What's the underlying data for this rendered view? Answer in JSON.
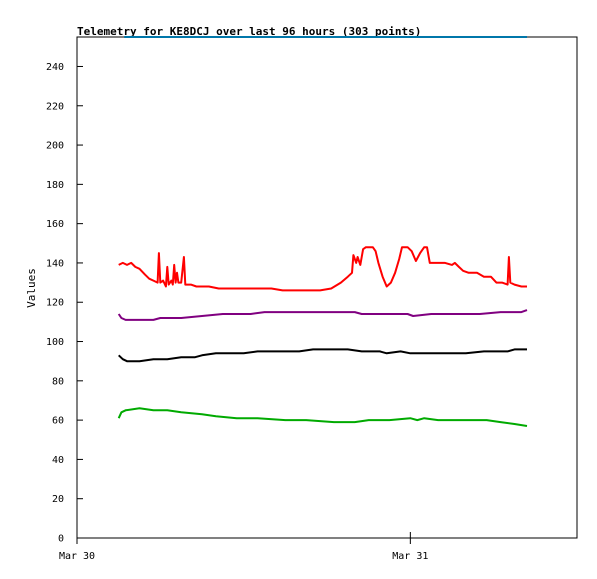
{
  "chart_data": {
    "type": "line",
    "title": "Telemetry for KE8DCJ over last 96 hours (303 points)",
    "xlabel": "",
    "ylabel": "Values",
    "ylim": [
      0,
      255
    ],
    "yticks": [
      0,
      20,
      40,
      60,
      80,
      100,
      120,
      140,
      160,
      180,
      200,
      220,
      240
    ],
    "xlim_hours": [
      0,
      36
    ],
    "xticks": [
      {
        "label": "Mar 30",
        "hour": 0
      },
      {
        "label": "Mar 31",
        "hour": 24
      }
    ],
    "grid": false,
    "legend": "none",
    "series": [
      {
        "color": "#0077aa",
        "points": [
          [
            3.4,
            255
          ],
          [
            32.4,
            255
          ]
        ]
      },
      {
        "color": "#ff0000",
        "points": [
          [
            3.0,
            139
          ],
          [
            3.3,
            140
          ],
          [
            3.6,
            139
          ],
          [
            3.9,
            140
          ],
          [
            4.2,
            138
          ],
          [
            4.5,
            137
          ],
          [
            4.9,
            134
          ],
          [
            5.2,
            132
          ],
          [
            5.5,
            131
          ],
          [
            5.8,
            130
          ],
          [
            5.9,
            145
          ],
          [
            6.0,
            130
          ],
          [
            6.2,
            131
          ],
          [
            6.4,
            128
          ],
          [
            6.5,
            138
          ],
          [
            6.6,
            129
          ],
          [
            6.8,
            131
          ],
          [
            6.9,
            129
          ],
          [
            7.0,
            139
          ],
          [
            7.1,
            130
          ],
          [
            7.2,
            135
          ],
          [
            7.3,
            130
          ],
          [
            7.5,
            130
          ],
          [
            7.7,
            143
          ],
          [
            7.8,
            129
          ],
          [
            8.2,
            129
          ],
          [
            8.6,
            128
          ],
          [
            9.5,
            128
          ],
          [
            10.2,
            127
          ],
          [
            11.0,
            127
          ],
          [
            12.5,
            127
          ],
          [
            14.0,
            127
          ],
          [
            14.8,
            126
          ],
          [
            16.0,
            126
          ],
          [
            17.5,
            126
          ],
          [
            18.3,
            127
          ],
          [
            19.0,
            130
          ],
          [
            19.5,
            133
          ],
          [
            19.8,
            135
          ],
          [
            19.9,
            144
          ],
          [
            20.1,
            140
          ],
          [
            20.2,
            143
          ],
          [
            20.4,
            139
          ],
          [
            20.6,
            147
          ],
          [
            20.8,
            148
          ],
          [
            21.0,
            148
          ],
          [
            21.3,
            148
          ],
          [
            21.5,
            146
          ],
          [
            21.7,
            140
          ],
          [
            22.0,
            133
          ],
          [
            22.3,
            128
          ],
          [
            22.6,
            130
          ],
          [
            22.9,
            135
          ],
          [
            23.2,
            142
          ],
          [
            23.4,
            148
          ],
          [
            23.8,
            148
          ],
          [
            24.1,
            146
          ],
          [
            24.4,
            141
          ],
          [
            24.7,
            145
          ],
          [
            25.0,
            148
          ],
          [
            25.2,
            148
          ],
          [
            25.4,
            140
          ],
          [
            26.0,
            140
          ],
          [
            26.5,
            140
          ],
          [
            27.0,
            139
          ],
          [
            27.2,
            140
          ],
          [
            27.5,
            138
          ],
          [
            27.8,
            136
          ],
          [
            28.2,
            135
          ],
          [
            28.8,
            135
          ],
          [
            29.3,
            133
          ],
          [
            29.8,
            133
          ],
          [
            30.2,
            130
          ],
          [
            30.6,
            130
          ],
          [
            31.0,
            129
          ],
          [
            31.1,
            143
          ],
          [
            31.2,
            130
          ],
          [
            31.5,
            129
          ],
          [
            32.0,
            128
          ],
          [
            32.4,
            128
          ]
        ]
      },
      {
        "color": "#800080",
        "points": [
          [
            3.0,
            114
          ],
          [
            3.2,
            112
          ],
          [
            3.5,
            111
          ],
          [
            4.5,
            111
          ],
          [
            5.5,
            111
          ],
          [
            6.0,
            112
          ],
          [
            7.5,
            112
          ],
          [
            9.0,
            113
          ],
          [
            10.5,
            114
          ],
          [
            12.5,
            114
          ],
          [
            13.5,
            115
          ],
          [
            15.0,
            115
          ],
          [
            17.0,
            115
          ],
          [
            20.0,
            115
          ],
          [
            20.5,
            114
          ],
          [
            22.0,
            114
          ],
          [
            23.8,
            114
          ],
          [
            24.2,
            113
          ],
          [
            25.5,
            114
          ],
          [
            27.5,
            114
          ],
          [
            29.0,
            114
          ],
          [
            30.5,
            115
          ],
          [
            32.0,
            115
          ],
          [
            32.4,
            116
          ]
        ]
      },
      {
        "color": "#000000",
        "points": [
          [
            3.0,
            93
          ],
          [
            3.3,
            91
          ],
          [
            3.6,
            90
          ],
          [
            4.5,
            90
          ],
          [
            5.5,
            91
          ],
          [
            6.5,
            91
          ],
          [
            7.5,
            92
          ],
          [
            8.5,
            92
          ],
          [
            9.0,
            93
          ],
          [
            10.0,
            94
          ],
          [
            12.0,
            94
          ],
          [
            13.0,
            95
          ],
          [
            16.0,
            95
          ],
          [
            17.0,
            96
          ],
          [
            19.5,
            96
          ],
          [
            20.5,
            95
          ],
          [
            21.8,
            95
          ],
          [
            22.3,
            94
          ],
          [
            23.3,
            95
          ],
          [
            24.0,
            94
          ],
          [
            26.0,
            94
          ],
          [
            28.0,
            94
          ],
          [
            29.3,
            95
          ],
          [
            31.0,
            95
          ],
          [
            31.5,
            96
          ],
          [
            32.4,
            96
          ]
        ]
      },
      {
        "color": "#00aa00",
        "points": [
          [
            3.0,
            61
          ],
          [
            3.2,
            64
          ],
          [
            3.5,
            65
          ],
          [
            4.5,
            66
          ],
          [
            5.5,
            65
          ],
          [
            6.5,
            65
          ],
          [
            7.5,
            64
          ],
          [
            9.0,
            63
          ],
          [
            10.0,
            62
          ],
          [
            11.5,
            61
          ],
          [
            13.0,
            61
          ],
          [
            15.0,
            60
          ],
          [
            16.5,
            60
          ],
          [
            18.5,
            59
          ],
          [
            20.0,
            59
          ],
          [
            21.0,
            60
          ],
          [
            22.5,
            60
          ],
          [
            24.0,
            61
          ],
          [
            24.5,
            60
          ],
          [
            25.0,
            61
          ],
          [
            26.0,
            60
          ],
          [
            28.0,
            60
          ],
          [
            29.5,
            60
          ],
          [
            30.5,
            59
          ],
          [
            31.5,
            58
          ],
          [
            32.4,
            57
          ]
        ]
      }
    ]
  }
}
